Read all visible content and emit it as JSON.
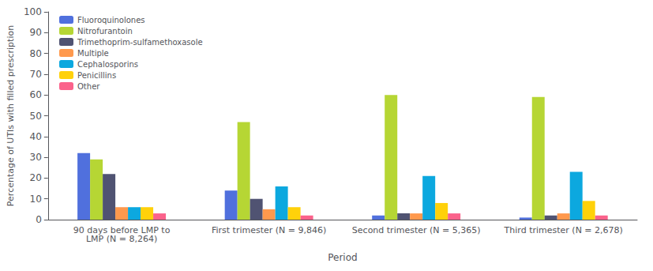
{
  "chart_data": {
    "type": "bar",
    "categories": [
      "90 days before LMP to\nLMP (N = 8,264)",
      "First trimester (N = 9,846)",
      "Second trimester (N = 5,365)",
      "Third trimester (N = 2,678)"
    ],
    "series": [
      {
        "name": "Fluoroquinolones",
        "values": [
          32,
          14,
          2,
          1
        ]
      },
      {
        "name": "Nitrofurantoin",
        "values": [
          29,
          47,
          60,
          59
        ]
      },
      {
        "name": "Trimethoprim-sulfamethoxasole",
        "values": [
          22,
          10,
          3,
          2
        ]
      },
      {
        "name": "Multiple",
        "values": [
          6,
          5,
          3,
          3
        ]
      },
      {
        "name": "Cephalosporins",
        "values": [
          6,
          16,
          21,
          23
        ]
      },
      {
        "name": "Penicillins",
        "values": [
          6,
          6,
          8,
          9
        ]
      },
      {
        "name": "Other",
        "values": [
          3,
          2,
          3,
          2
        ]
      }
    ],
    "xlabel": "Period",
    "ylabel": "Percentage of UTIs with filled prescription",
    "ylim": [
      0,
      100
    ],
    "yticks": [
      0,
      10,
      20,
      30,
      40,
      50,
      60,
      70,
      80,
      90,
      100
    ],
    "grid": false,
    "legend": "upper left"
  }
}
